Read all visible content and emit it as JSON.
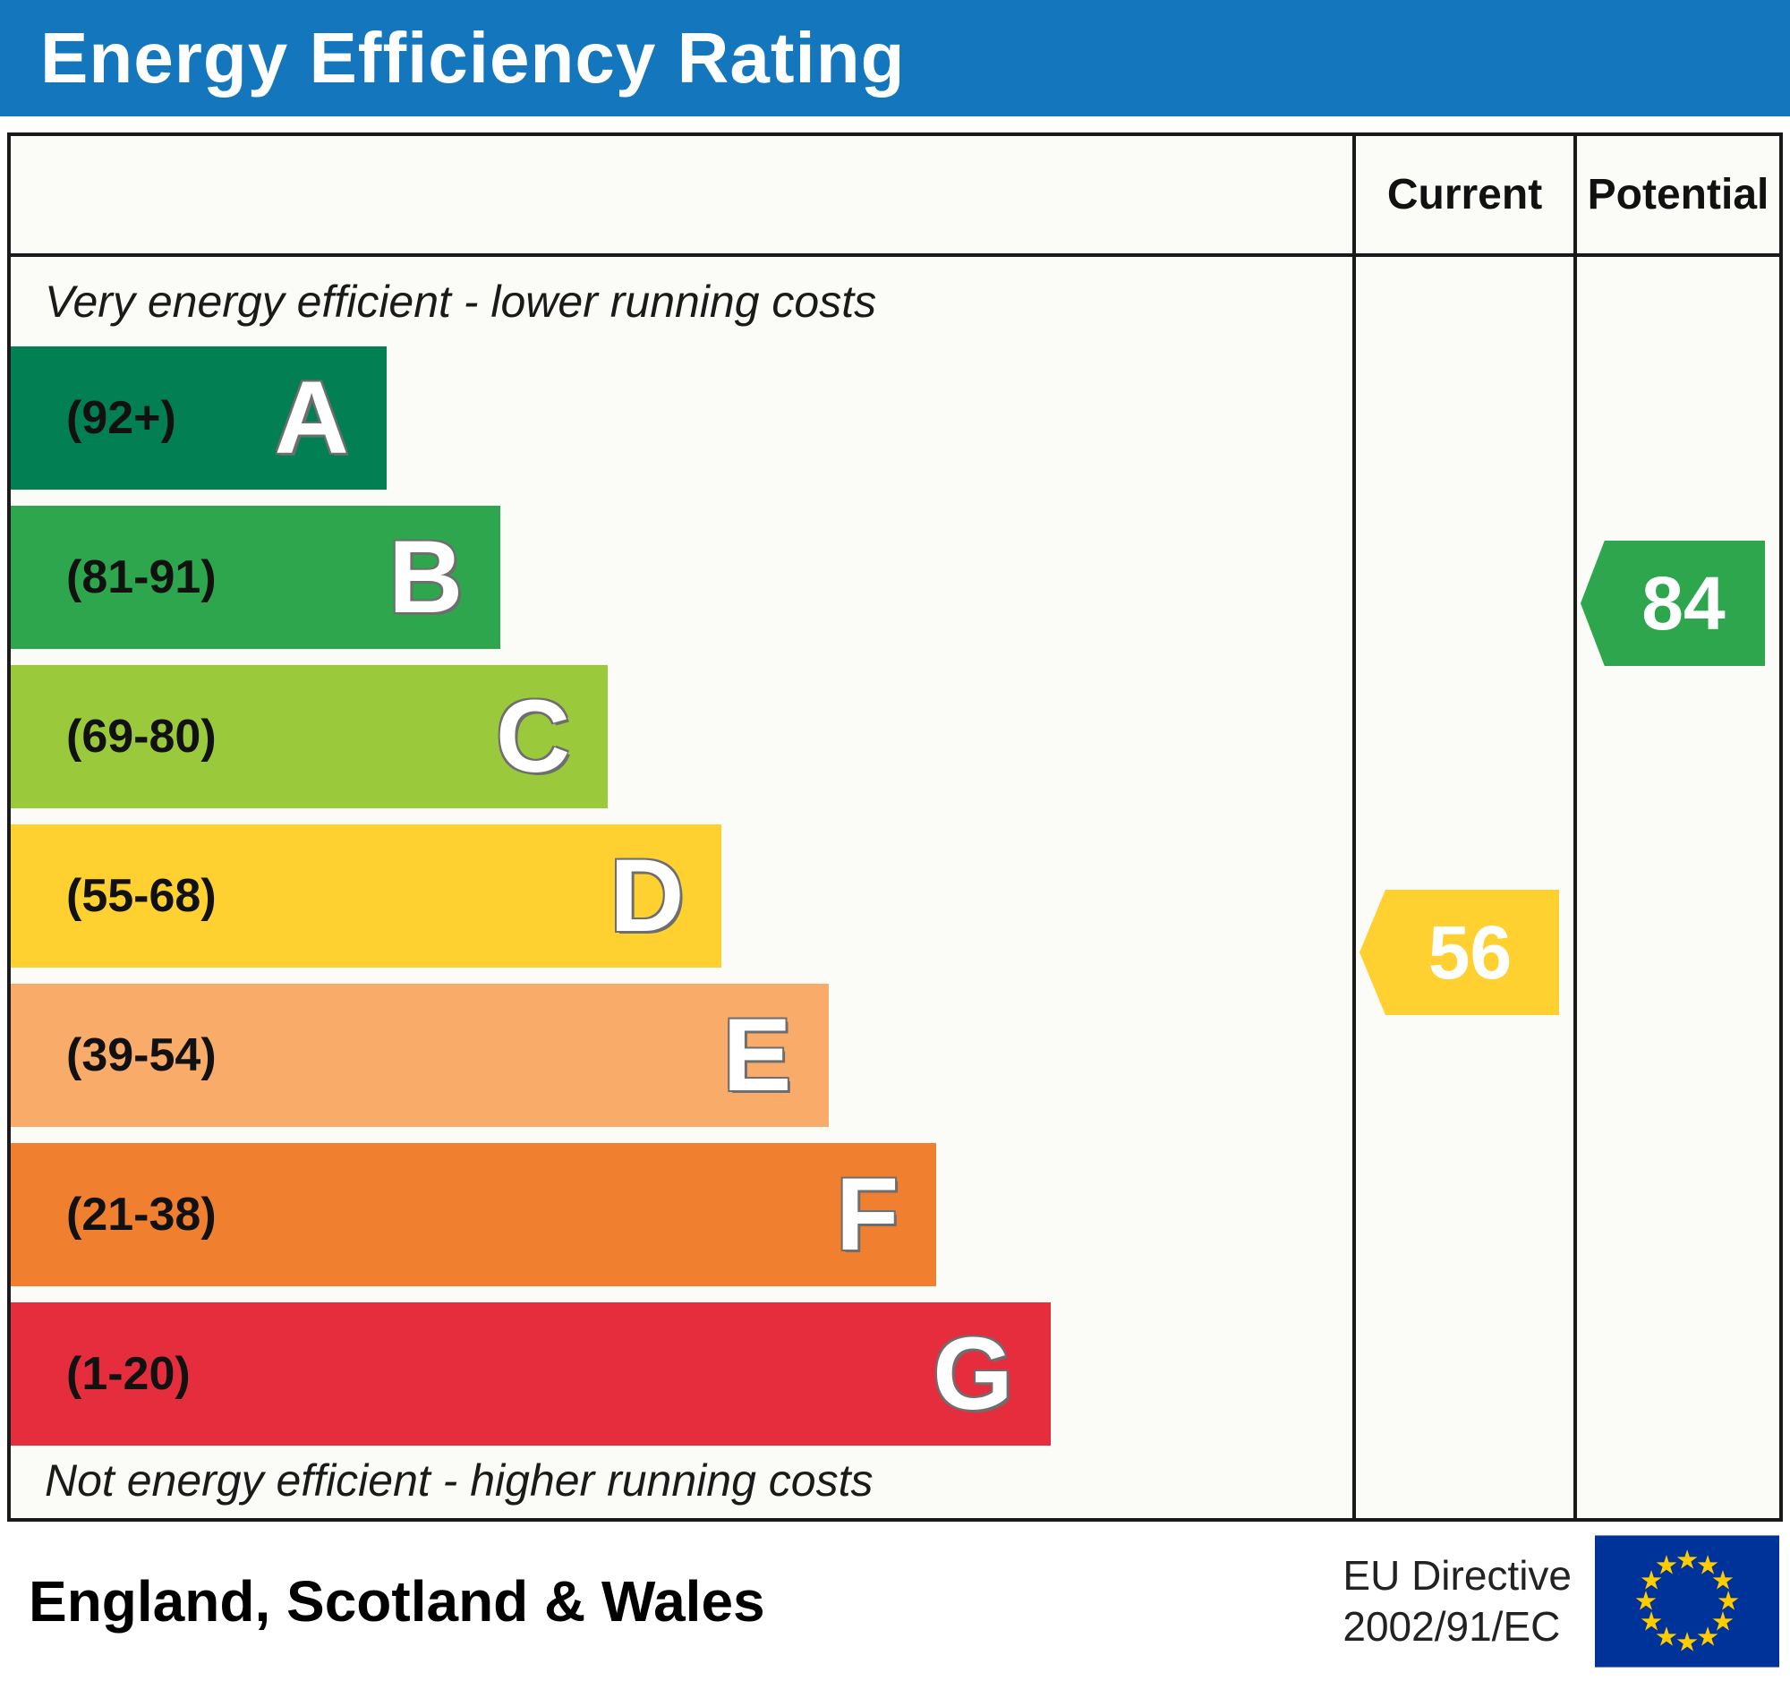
{
  "title": "Energy Efficiency Rating",
  "columns": {
    "current": "Current",
    "potential": "Potential"
  },
  "notes": {
    "top": "Very energy efficient - lower running costs",
    "bottom": "Not energy efficient - higher running costs"
  },
  "footer": {
    "region": "England, Scotland & Wales",
    "directive": [
      "EU Directive",
      "2002/91/EC"
    ],
    "flag_icon": "eu-flag-icon"
  },
  "colors": {
    "header_bg": "#1476bd",
    "header_text": "#ffffff",
    "border": "#1a1a1a",
    "eu_flag_blue": "#003399",
    "eu_flag_star": "#ffcc00"
  },
  "chart_data": {
    "type": "bar",
    "title": "Energy Efficiency Rating",
    "xlabel": "",
    "ylabel": "",
    "legend_position": "none",
    "grid": false,
    "bands": [
      {
        "letter": "A",
        "label": "(92+)",
        "min": 92,
        "max": 100,
        "color": "#028054",
        "width_pct": 28
      },
      {
        "letter": "B",
        "label": "(81-91)",
        "min": 81,
        "max": 91,
        "color": "#2ea64e",
        "width_pct": 36.5
      },
      {
        "letter": "C",
        "label": "(69-80)",
        "min": 69,
        "max": 80,
        "color": "#9aca3c",
        "width_pct": 44.5
      },
      {
        "letter": "D",
        "label": "(55-68)",
        "min": 55,
        "max": 68,
        "color": "#fed130",
        "width_pct": 53
      },
      {
        "letter": "E",
        "label": "(39-54)",
        "min": 39,
        "max": 54,
        "color": "#f9ab6a",
        "width_pct": 61
      },
      {
        "letter": "F",
        "label": "(21-38)",
        "min": 21,
        "max": 38,
        "color": "#f08030",
        "width_pct": 69
      },
      {
        "letter": "G",
        "label": "(1-20)",
        "min": 1,
        "max": 20,
        "color": "#e52d3d",
        "width_pct": 77.5
      }
    ],
    "markers": [
      {
        "name": "current",
        "value": 56,
        "band": "D",
        "color": "#fed130"
      },
      {
        "name": "potential",
        "value": 84,
        "band": "B",
        "color": "#2ea64e"
      }
    ]
  }
}
